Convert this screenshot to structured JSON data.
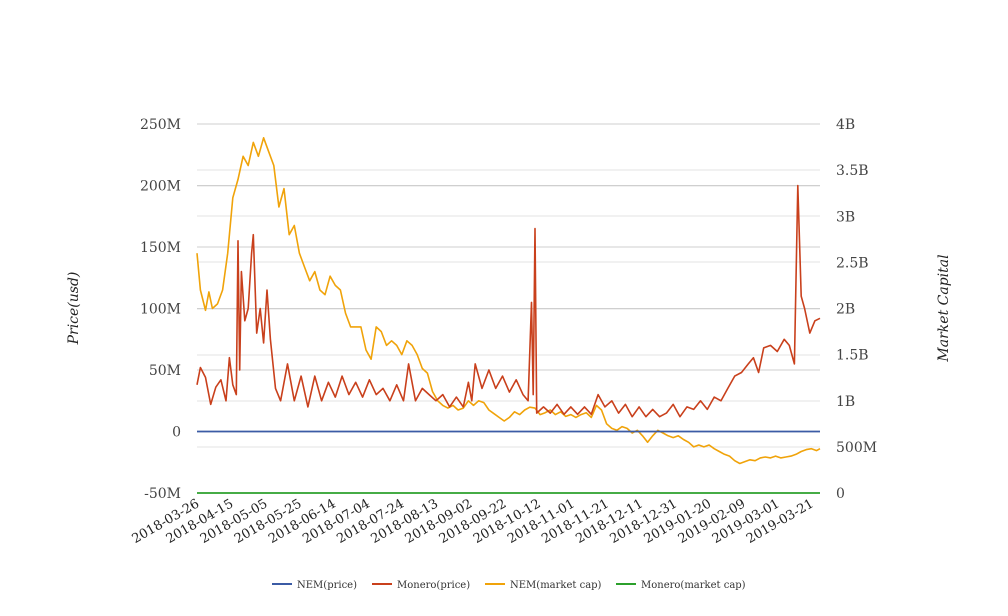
{
  "chart_data": {
    "type": "line",
    "title": "",
    "x_ticks": [
      "2018-03-26",
      "2018-04-15",
      "2018-05-05",
      "2018-05-25",
      "2018-06-14",
      "2018-07-04",
      "2018-07-24",
      "2018-08-13",
      "2018-09-02",
      "2018-09-22",
      "2018-10-12",
      "2018-11-01",
      "2018-11-21",
      "2018-12-11",
      "2018-12-31",
      "2019-01-20",
      "2019-02-09",
      "2019-03-01",
      "2019-03-21"
    ],
    "xlim": [
      "2018-03-26",
      "2019-03-26"
    ],
    "left_axis": {
      "label": "Price(usd)",
      "ylim": [
        -50000000,
        250000000
      ],
      "ticks": [
        -50000000,
        0,
        50000000,
        100000000,
        150000000,
        200000000,
        250000000
      ],
      "tick_labels": [
        "-50M",
        "0",
        "50M",
        "100M",
        "150M",
        "200M",
        "250M"
      ]
    },
    "right_axis": {
      "label": "Market Capital",
      "ylim": [
        0,
        4000000000
      ],
      "ticks": [
        0,
        500000000,
        1000000000,
        1500000000,
        2000000000,
        2500000000,
        3000000000,
        3500000000,
        4000000000
      ],
      "tick_labels": [
        "0",
        "500M",
        "1B",
        "1.5B",
        "2B",
        "2.5B",
        "3B",
        "3.5B",
        "4B"
      ]
    },
    "grid": true,
    "legend_position": "bottom",
    "series": [
      {
        "name": "NEM(price)",
        "color": "#3b5ba5",
        "axis": "left",
        "points": [
          [
            "2018-03-26",
            0
          ],
          [
            "2019-03-26",
            0
          ]
        ]
      },
      {
        "name": "Monero(price)",
        "color": "#c9401c",
        "axis": "left",
        "points": [
          [
            "2018-03-26",
            38000000
          ],
          [
            "2018-03-28",
            52000000
          ],
          [
            "2018-03-31",
            44000000
          ],
          [
            "2018-04-03",
            22000000
          ],
          [
            "2018-04-06",
            36000000
          ],
          [
            "2018-04-09",
            42000000
          ],
          [
            "2018-04-12",
            25000000
          ],
          [
            "2018-04-14",
            60000000
          ],
          [
            "2018-04-16",
            38000000
          ],
          [
            "2018-04-18",
            30000000
          ],
          [
            "2018-04-19",
            155000000
          ],
          [
            "2018-04-20",
            50000000
          ],
          [
            "2018-04-21",
            130000000
          ],
          [
            "2018-04-23",
            90000000
          ],
          [
            "2018-04-25",
            100000000
          ],
          [
            "2018-04-27",
            145000000
          ],
          [
            "2018-04-28",
            160000000
          ],
          [
            "2018-04-30",
            80000000
          ],
          [
            "2018-05-02",
            100000000
          ],
          [
            "2018-05-04",
            72000000
          ],
          [
            "2018-05-06",
            115000000
          ],
          [
            "2018-05-08",
            75000000
          ],
          [
            "2018-05-11",
            35000000
          ],
          [
            "2018-05-14",
            25000000
          ],
          [
            "2018-05-18",
            55000000
          ],
          [
            "2018-05-22",
            25000000
          ],
          [
            "2018-05-26",
            45000000
          ],
          [
            "2018-05-30",
            20000000
          ],
          [
            "2018-06-03",
            45000000
          ],
          [
            "2018-06-07",
            25000000
          ],
          [
            "2018-06-11",
            40000000
          ],
          [
            "2018-06-15",
            28000000
          ],
          [
            "2018-06-19",
            45000000
          ],
          [
            "2018-06-23",
            30000000
          ],
          [
            "2018-06-27",
            40000000
          ],
          [
            "2018-07-01",
            28000000
          ],
          [
            "2018-07-05",
            42000000
          ],
          [
            "2018-07-09",
            30000000
          ],
          [
            "2018-07-13",
            35000000
          ],
          [
            "2018-07-17",
            25000000
          ],
          [
            "2018-07-21",
            38000000
          ],
          [
            "2018-07-25",
            25000000
          ],
          [
            "2018-07-28",
            55000000
          ],
          [
            "2018-08-01",
            25000000
          ],
          [
            "2018-08-05",
            35000000
          ],
          [
            "2018-08-09",
            30000000
          ],
          [
            "2018-08-13",
            25000000
          ],
          [
            "2018-08-17",
            30000000
          ],
          [
            "2018-08-21",
            20000000
          ],
          [
            "2018-08-25",
            28000000
          ],
          [
            "2018-08-29",
            20000000
          ],
          [
            "2018-09-01",
            40000000
          ],
          [
            "2018-09-03",
            25000000
          ],
          [
            "2018-09-05",
            55000000
          ],
          [
            "2018-09-09",
            35000000
          ],
          [
            "2018-09-13",
            50000000
          ],
          [
            "2018-09-17",
            35000000
          ],
          [
            "2018-09-21",
            45000000
          ],
          [
            "2018-09-25",
            32000000
          ],
          [
            "2018-09-29",
            42000000
          ],
          [
            "2018-10-03",
            30000000
          ],
          [
            "2018-10-06",
            25000000
          ],
          [
            "2018-10-08",
            105000000
          ],
          [
            "2018-10-09",
            30000000
          ],
          [
            "2018-10-10",
            165000000
          ],
          [
            "2018-10-11",
            15000000
          ],
          [
            "2018-10-15",
            20000000
          ],
          [
            "2018-10-19",
            15000000
          ],
          [
            "2018-10-23",
            22000000
          ],
          [
            "2018-10-27",
            14000000
          ],
          [
            "2018-10-31",
            20000000
          ],
          [
            "2018-11-04",
            14000000
          ],
          [
            "2018-11-08",
            20000000
          ],
          [
            "2018-11-12",
            14000000
          ],
          [
            "2018-11-16",
            30000000
          ],
          [
            "2018-11-20",
            20000000
          ],
          [
            "2018-11-24",
            25000000
          ],
          [
            "2018-11-28",
            15000000
          ],
          [
            "2018-12-02",
            22000000
          ],
          [
            "2018-12-06",
            12000000
          ],
          [
            "2018-12-10",
            20000000
          ],
          [
            "2018-12-14",
            12000000
          ],
          [
            "2018-12-18",
            18000000
          ],
          [
            "2018-12-22",
            12000000
          ],
          [
            "2018-12-26",
            15000000
          ],
          [
            "2018-12-30",
            22000000
          ],
          [
            "2019-01-03",
            12000000
          ],
          [
            "2019-01-07",
            20000000
          ],
          [
            "2019-01-11",
            18000000
          ],
          [
            "2019-01-15",
            25000000
          ],
          [
            "2019-01-19",
            18000000
          ],
          [
            "2019-01-23",
            28000000
          ],
          [
            "2019-01-27",
            25000000
          ],
          [
            "2019-01-31",
            35000000
          ],
          [
            "2019-02-04",
            45000000
          ],
          [
            "2019-02-08",
            48000000
          ],
          [
            "2019-02-12",
            55000000
          ],
          [
            "2019-02-15",
            60000000
          ],
          [
            "2019-02-18",
            48000000
          ],
          [
            "2019-02-21",
            68000000
          ],
          [
            "2019-02-25",
            70000000
          ],
          [
            "2019-03-01",
            65000000
          ],
          [
            "2019-03-05",
            75000000
          ],
          [
            "2019-03-08",
            70000000
          ],
          [
            "2019-03-11",
            55000000
          ],
          [
            "2019-03-13",
            200000000
          ],
          [
            "2019-03-15",
            110000000
          ],
          [
            "2019-03-17",
            100000000
          ],
          [
            "2019-03-20",
            80000000
          ],
          [
            "2019-03-23",
            90000000
          ],
          [
            "2019-03-26",
            92000000
          ]
        ]
      },
      {
        "name": "NEM(market cap)",
        "color": "#f0a30a",
        "axis": "right",
        "points": [
          [
            "2018-03-26",
            2600000000
          ],
          [
            "2018-03-28",
            2200000000
          ],
          [
            "2018-03-31",
            1980000000
          ],
          [
            "2018-04-02",
            2180000000
          ],
          [
            "2018-04-04",
            2000000000
          ],
          [
            "2018-04-07",
            2050000000
          ],
          [
            "2018-04-10",
            2200000000
          ],
          [
            "2018-04-13",
            2600000000
          ],
          [
            "2018-04-16",
            3200000000
          ],
          [
            "2018-04-19",
            3400000000
          ],
          [
            "2018-04-22",
            3650000000
          ],
          [
            "2018-04-25",
            3550000000
          ],
          [
            "2018-04-28",
            3800000000
          ],
          [
            "2018-05-01",
            3650000000
          ],
          [
            "2018-05-04",
            3850000000
          ],
          [
            "2018-05-07",
            3700000000
          ],
          [
            "2018-05-10",
            3550000000
          ],
          [
            "2018-05-13",
            3100000000
          ],
          [
            "2018-05-16",
            3300000000
          ],
          [
            "2018-05-19",
            2800000000
          ],
          [
            "2018-05-22",
            2900000000
          ],
          [
            "2018-05-25",
            2600000000
          ],
          [
            "2018-05-28",
            2450000000
          ],
          [
            "2018-05-31",
            2300000000
          ],
          [
            "2018-06-03",
            2400000000
          ],
          [
            "2018-06-06",
            2200000000
          ],
          [
            "2018-06-09",
            2150000000
          ],
          [
            "2018-06-12",
            2350000000
          ],
          [
            "2018-06-15",
            2250000000
          ],
          [
            "2018-06-18",
            2200000000
          ],
          [
            "2018-06-21",
            1950000000
          ],
          [
            "2018-06-24",
            1800000000
          ],
          [
            "2018-06-27",
            1800000000
          ],
          [
            "2018-06-30",
            1800000000
          ],
          [
            "2018-07-03",
            1550000000
          ],
          [
            "2018-07-06",
            1450000000
          ],
          [
            "2018-07-09",
            1800000000
          ],
          [
            "2018-07-12",
            1750000000
          ],
          [
            "2018-07-15",
            1600000000
          ],
          [
            "2018-07-18",
            1650000000
          ],
          [
            "2018-07-21",
            1600000000
          ],
          [
            "2018-07-24",
            1500000000
          ],
          [
            "2018-07-27",
            1650000000
          ],
          [
            "2018-07-30",
            1600000000
          ],
          [
            "2018-08-02",
            1500000000
          ],
          [
            "2018-08-05",
            1350000000
          ],
          [
            "2018-08-08",
            1300000000
          ],
          [
            "2018-08-11",
            1100000000
          ],
          [
            "2018-08-14",
            1000000000
          ],
          [
            "2018-08-17",
            950000000
          ],
          [
            "2018-08-20",
            920000000
          ],
          [
            "2018-08-23",
            950000000
          ],
          [
            "2018-08-26",
            900000000
          ],
          [
            "2018-08-29",
            920000000
          ],
          [
            "2018-09-01",
            1000000000
          ],
          [
            "2018-09-04",
            950000000
          ],
          [
            "2018-09-07",
            1000000000
          ],
          [
            "2018-09-10",
            980000000
          ],
          [
            "2018-09-13",
            900000000
          ],
          [
            "2018-09-16",
            860000000
          ],
          [
            "2018-09-19",
            820000000
          ],
          [
            "2018-09-22",
            780000000
          ],
          [
            "2018-09-25",
            820000000
          ],
          [
            "2018-09-28",
            880000000
          ],
          [
            "2018-10-01",
            850000000
          ],
          [
            "2018-10-04",
            900000000
          ],
          [
            "2018-10-07",
            930000000
          ],
          [
            "2018-10-10",
            920000000
          ],
          [
            "2018-10-13",
            850000000
          ],
          [
            "2018-10-16",
            870000000
          ],
          [
            "2018-10-19",
            900000000
          ],
          [
            "2018-10-22",
            850000000
          ],
          [
            "2018-10-25",
            880000000
          ],
          [
            "2018-10-28",
            830000000
          ],
          [
            "2018-10-31",
            850000000
          ],
          [
            "2018-11-03",
            820000000
          ],
          [
            "2018-11-06",
            850000000
          ],
          [
            "2018-11-09",
            870000000
          ],
          [
            "2018-11-12",
            820000000
          ],
          [
            "2018-11-15",
            950000000
          ],
          [
            "2018-11-18",
            900000000
          ],
          [
            "2018-11-21",
            750000000
          ],
          [
            "2018-11-24",
            700000000
          ],
          [
            "2018-11-27",
            680000000
          ],
          [
            "2018-11-30",
            720000000
          ],
          [
            "2018-12-03",
            700000000
          ],
          [
            "2018-12-06",
            650000000
          ],
          [
            "2018-12-09",
            680000000
          ],
          [
            "2018-12-12",
            620000000
          ],
          [
            "2018-12-15",
            550000000
          ],
          [
            "2018-12-18",
            620000000
          ],
          [
            "2018-12-21",
            680000000
          ],
          [
            "2018-12-24",
            650000000
          ],
          [
            "2018-12-27",
            620000000
          ],
          [
            "2018-12-30",
            600000000
          ],
          [
            "2019-01-02",
            620000000
          ],
          [
            "2019-01-05",
            580000000
          ],
          [
            "2019-01-08",
            550000000
          ],
          [
            "2019-01-11",
            500000000
          ],
          [
            "2019-01-14",
            520000000
          ],
          [
            "2019-01-17",
            500000000
          ],
          [
            "2019-01-20",
            520000000
          ],
          [
            "2019-01-23",
            480000000
          ],
          [
            "2019-01-26",
            450000000
          ],
          [
            "2019-01-29",
            420000000
          ],
          [
            "2019-02-01",
            400000000
          ],
          [
            "2019-02-04",
            350000000
          ],
          [
            "2019-02-07",
            320000000
          ],
          [
            "2019-02-10",
            340000000
          ],
          [
            "2019-02-13",
            360000000
          ],
          [
            "2019-02-16",
            350000000
          ],
          [
            "2019-02-19",
            380000000
          ],
          [
            "2019-02-22",
            390000000
          ],
          [
            "2019-02-25",
            380000000
          ],
          [
            "2019-02-28",
            400000000
          ],
          [
            "2019-03-03",
            380000000
          ],
          [
            "2019-03-06",
            390000000
          ],
          [
            "2019-03-09",
            400000000
          ],
          [
            "2019-03-12",
            420000000
          ],
          [
            "2019-03-15",
            450000000
          ],
          [
            "2019-03-18",
            470000000
          ],
          [
            "2019-03-21",
            480000000
          ],
          [
            "2019-03-24",
            460000000
          ],
          [
            "2019-03-26",
            480000000
          ]
        ]
      },
      {
        "name": "Monero(market cap)",
        "color": "#2ca02c",
        "axis": "right",
        "points": [
          [
            "2018-03-26",
            0
          ],
          [
            "2019-03-26",
            0
          ]
        ]
      }
    ]
  }
}
